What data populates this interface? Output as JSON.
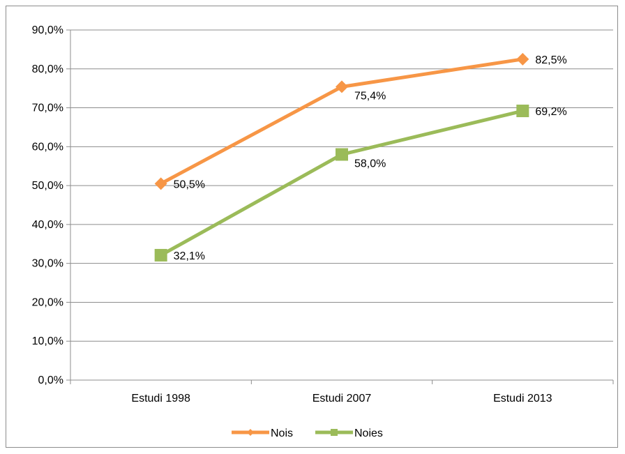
{
  "chart_data": {
    "type": "line",
    "categories": [
      "Estudi 1998",
      "Estudi 2007",
      "Estudi 2013"
    ],
    "y_ticks": [
      "0,0%",
      "10,0%",
      "20,0%",
      "30,0%",
      "40,0%",
      "50,0%",
      "60,0%",
      "70,0%",
      "80,0%",
      "90,0%"
    ],
    "ylim": [
      0,
      90
    ],
    "grid": true,
    "legend_position": "bottom",
    "series": [
      {
        "name": "Nois",
        "values": [
          50.5,
          75.4,
          82.5
        ],
        "labels": [
          "50,5%",
          "75,4%",
          "82,5%"
        ],
        "color": "#f79646",
        "marker": "diamond"
      },
      {
        "name": "Noies",
        "values": [
          32.1,
          58.0,
          69.2
        ],
        "labels": [
          "32,1%",
          "58,0%",
          "69,2%"
        ],
        "color": "#9bbb59",
        "marker": "square"
      }
    ]
  }
}
